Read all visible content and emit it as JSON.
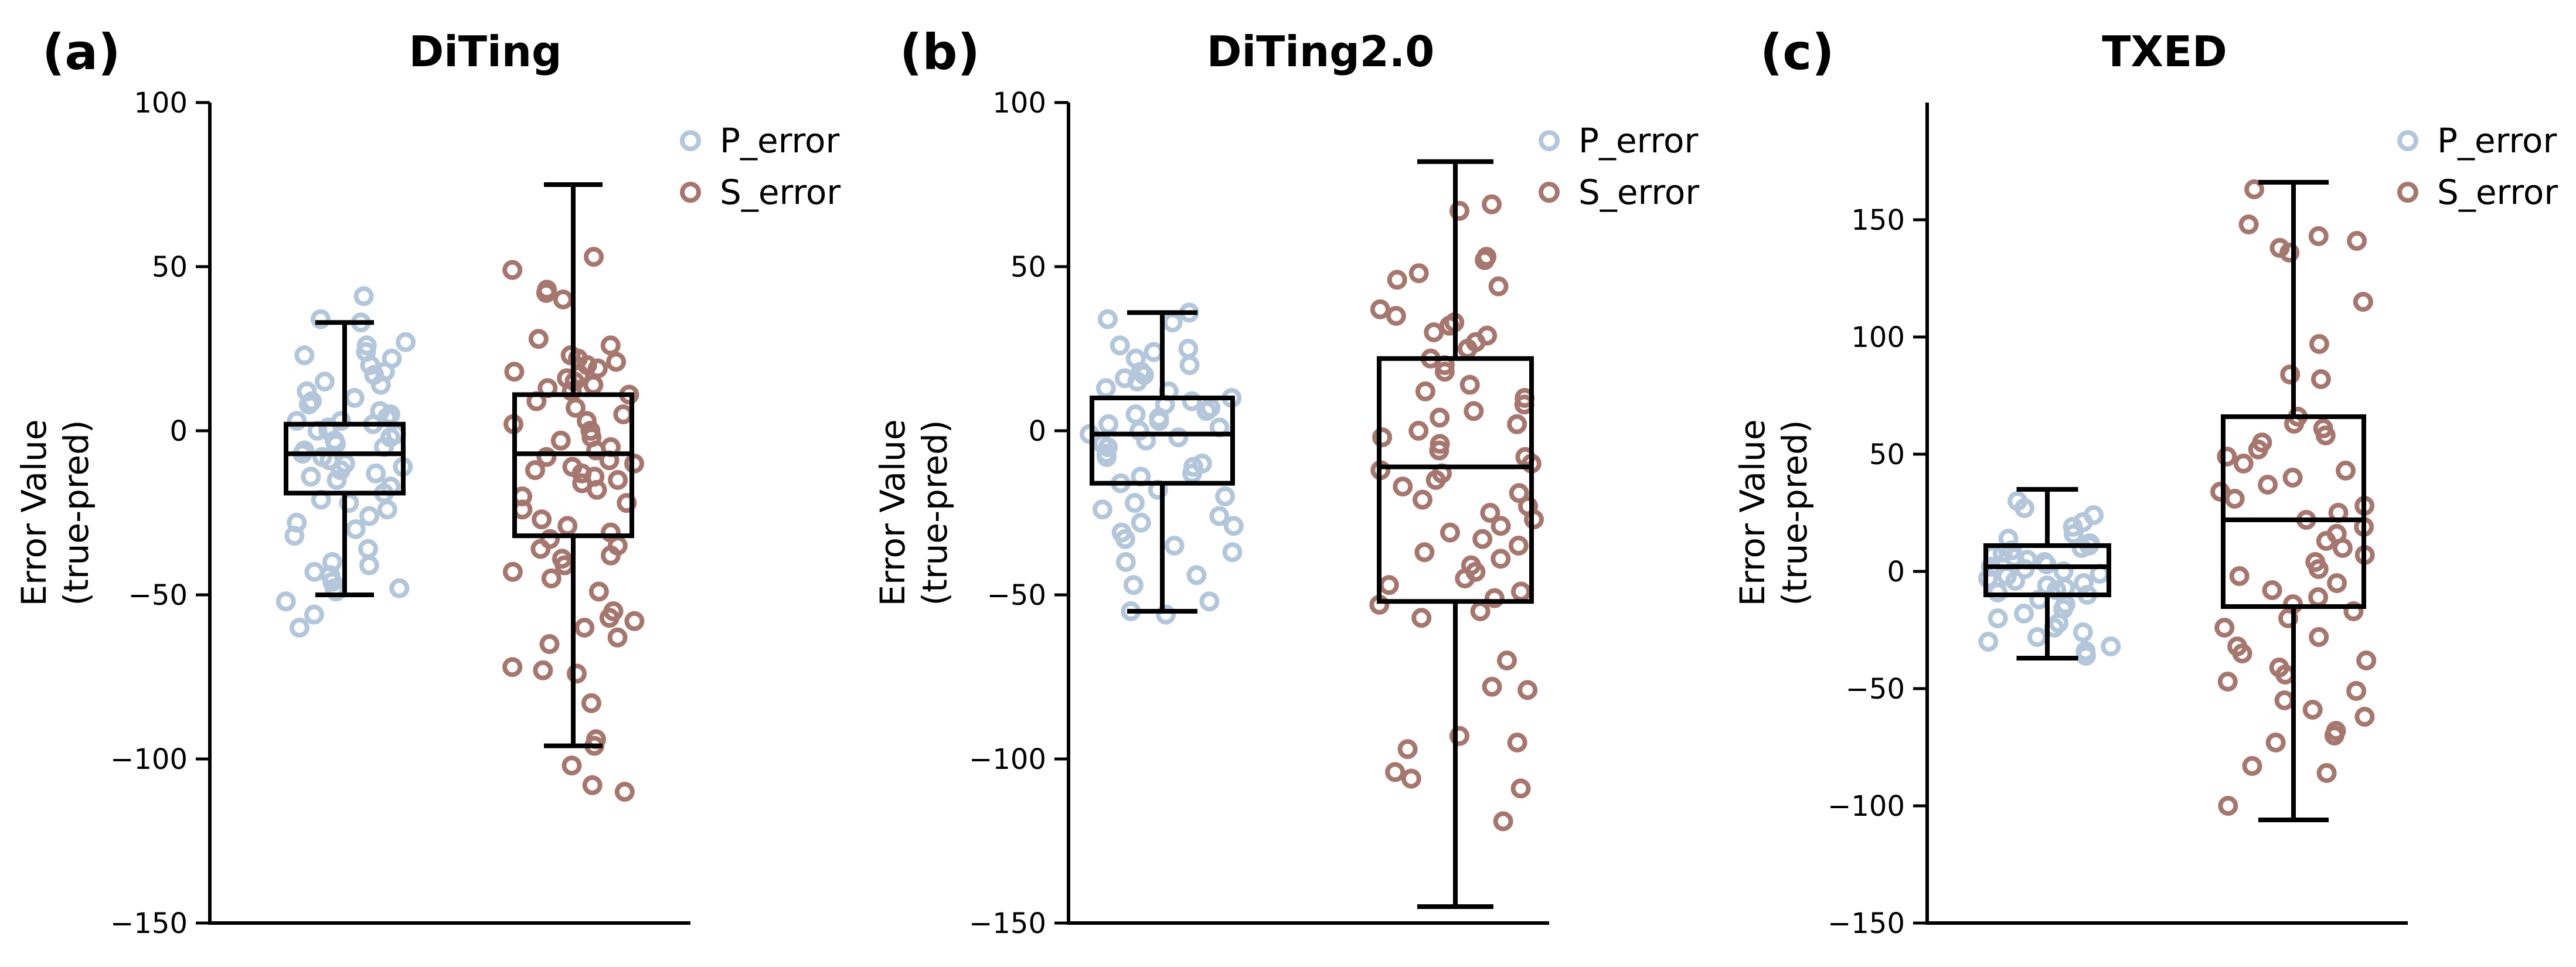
{
  "colors": {
    "p_error": "#b3c6da",
    "s_error": "#a6776f"
  },
  "chart_data": [
    {
      "type": "box",
      "panel_label": "(a)",
      "title": "DiTing",
      "ylabel_lines": [
        "Error Value",
        "(true-pred)"
      ],
      "ylim": [
        -150,
        100
      ],
      "yticks": [
        100,
        50,
        0,
        -50,
        -100,
        -150
      ],
      "ytick_labels": [
        "100",
        "50",
        "0",
        "−50",
        "−100",
        "−150"
      ],
      "legend": {
        "position": "top-right",
        "entries": [
          "P_error",
          "S_error"
        ]
      },
      "series": [
        {
          "name": "P_error",
          "box": {
            "whisker_low": -50,
            "q1": -19,
            "median": -7,
            "q3": 2,
            "whisker_high": 33
          },
          "points": [
            41,
            34,
            33,
            27,
            26,
            24,
            23,
            22,
            20,
            18,
            17,
            15,
            14,
            12,
            10,
            9,
            8,
            6,
            5,
            4,
            3,
            3,
            2,
            1,
            0,
            0,
            -1,
            -2,
            -3,
            -4,
            -5,
            -6,
            -7,
            -8,
            -9,
            -10,
            -11,
            -12,
            -13,
            -14,
            -15,
            -17,
            -19,
            -21,
            -22,
            -24,
            -26,
            -28,
            -30,
            -32,
            -36,
            -40,
            -41,
            -43,
            -44,
            -46,
            -48,
            -48,
            -49,
            -52,
            -56,
            -60
          ]
        },
        {
          "name": "S_error",
          "box": {
            "whisker_low": -96,
            "q1": -32,
            "median": -7,
            "q3": 11,
            "whisker_high": 75
          },
          "points": [
            53,
            49,
            43,
            42,
            40,
            28,
            26,
            23,
            22,
            21,
            20,
            19,
            18,
            17,
            16,
            15,
            14,
            13,
            12,
            11,
            9,
            7,
            5,
            3,
            2,
            0,
            -2,
            -3,
            -5,
            -6,
            -8,
            -9,
            -10,
            -11,
            -12,
            -13,
            -14,
            -15,
            -16,
            -18,
            -20,
            -22,
            -24,
            -27,
            -29,
            -31,
            -33,
            -35,
            -36,
            -38,
            -39,
            -41,
            -43,
            -45,
            -49,
            -55,
            -57,
            -58,
            -60,
            -63,
            -65,
            -72,
            -73,
            -74,
            -83,
            -94,
            -96,
            -102,
            -108,
            -110
          ]
        }
      ]
    },
    {
      "type": "box",
      "panel_label": "(b)",
      "title": "DiTing2.0",
      "ylabel_lines": [
        "Error Value",
        "(true-pred)"
      ],
      "ylim": [
        -150,
        100
      ],
      "yticks": [
        100,
        50,
        0,
        -50,
        -100,
        -150
      ],
      "ytick_labels": [
        "100",
        "50",
        "0",
        "−50",
        "−100",
        "−150"
      ],
      "legend": {
        "position": "top-right",
        "entries": [
          "P_error",
          "S_error"
        ]
      },
      "series": [
        {
          "name": "P_error",
          "box": {
            "whisker_low": -55,
            "q1": -16,
            "median": -1,
            "q3": 10,
            "whisker_high": 36
          },
          "points": [
            36,
            34,
            33,
            26,
            25,
            24,
            22,
            20,
            18,
            17,
            16,
            15,
            13,
            12,
            10,
            9,
            8,
            7,
            6,
            5,
            4,
            3,
            2,
            1,
            0,
            -1,
            -2,
            -3,
            -4,
            -5,
            -7,
            -8,
            -10,
            -11,
            -13,
            -14,
            -16,
            -18,
            -20,
            -22,
            -24,
            -26,
            -28,
            -29,
            -31,
            -33,
            -35,
            -37,
            -40,
            -44,
            -47,
            -52,
            -55,
            -56
          ]
        },
        {
          "name": "S_error",
          "box": {
            "whisker_low": -145,
            "q1": -52,
            "median": -11,
            "q3": 22,
            "whisker_high": 82
          },
          "points": [
            69,
            67,
            53,
            52,
            48,
            46,
            44,
            37,
            35,
            33,
            32,
            30,
            29,
            27,
            25,
            22,
            20,
            18,
            14,
            12,
            10,
            8,
            6,
            4,
            2,
            0,
            -2,
            -4,
            -6,
            -8,
            -10,
            -12,
            -13,
            -15,
            -17,
            -19,
            -21,
            -23,
            -25,
            -27,
            -29,
            -31,
            -33,
            -35,
            -37,
            -39,
            -41,
            -43,
            -45,
            -47,
            -49,
            -51,
            -53,
            -55,
            -57,
            -70,
            -78,
            -79,
            -93,
            -95,
            -97,
            -104,
            -106,
            -109,
            -119
          ]
        }
      ]
    },
    {
      "type": "box",
      "panel_label": "(c)",
      "title": "TXED",
      "ylabel_lines": [
        "Error Value",
        "(true-pred)"
      ],
      "ylim": [
        -150,
        200
      ],
      "yticks": [
        150,
        100,
        50,
        0,
        -50,
        -100,
        -150
      ],
      "ytick_labels": [
        "150",
        "100",
        "50",
        "0",
        "−50",
        "−100",
        "−150"
      ],
      "legend": {
        "position": "top-right",
        "entries": [
          "P_error",
          "S_error"
        ]
      },
      "series": [
        {
          "name": "P_error",
          "box": {
            "whisker_low": -37,
            "q1": -10,
            "median": 2,
            "q3": 11,
            "whisker_high": 35
          },
          "points": [
            30,
            27,
            24,
            21,
            19,
            16,
            14,
            12,
            11,
            10,
            9,
            8,
            7,
            6,
            5,
            4,
            3,
            2,
            1,
            0,
            -1,
            -2,
            -3,
            -4,
            -5,
            -6,
            -7,
            -8,
            -9,
            -10,
            -12,
            -14,
            -16,
            -18,
            -20,
            -22,
            -24,
            -26,
            -28,
            -30,
            -32,
            -34,
            -36
          ]
        },
        {
          "name": "S_error",
          "box": {
            "whisker_low": -106,
            "q1": -15,
            "median": 22,
            "q3": 66,
            "whisker_high": 166
          },
          "points": [
            163,
            148,
            143,
            141,
            138,
            136,
            115,
            97,
            84,
            82,
            66,
            63,
            61,
            58,
            55,
            52,
            49,
            46,
            43,
            40,
            37,
            34,
            31,
            28,
            25,
            22,
            19,
            16,
            13,
            10,
            7,
            4,
            1,
            -2,
            -5,
            -8,
            -11,
            -14,
            -17,
            -20,
            -24,
            -28,
            -32,
            -35,
            -38,
            -41,
            -44,
            -47,
            -51,
            -55,
            -59,
            -62,
            -68,
            -70,
            -73,
            -83,
            -86,
            -100
          ]
        }
      ]
    }
  ]
}
